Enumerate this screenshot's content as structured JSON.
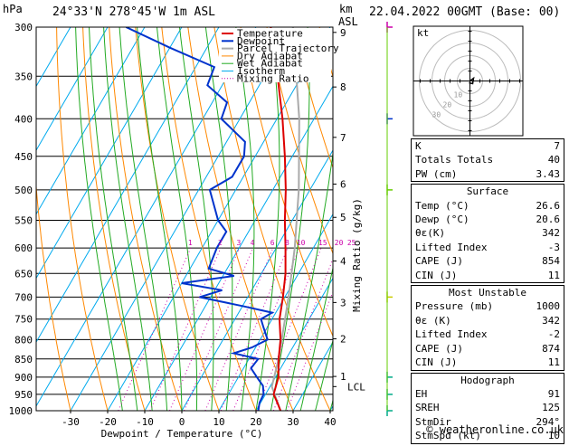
{
  "header": {
    "pressure_unit": "hPa",
    "location": "24°33'N  278°45'W  1m ASL",
    "km_label": "km",
    "asl_label": "ASL",
    "datetime": "22.04.2022 00GMT (Base: 00)"
  },
  "chart_data": {
    "type": "skew-t",
    "xlabel": "Dewpoint / Temperature (°C)",
    "ylabel_right": "Mixing Ratio (g/kg)",
    "pressure_ticks": [
      300,
      350,
      400,
      450,
      500,
      550,
      600,
      650,
      700,
      750,
      800,
      850,
      900,
      950,
      1000
    ],
    "temperature_ticks": [
      -30,
      -20,
      -10,
      0,
      10,
      20,
      30,
      40
    ],
    "km_ticks": [
      {
        "label": "9",
        "p": 305
      },
      {
        "label": "8",
        "p": 362
      },
      {
        "label": "7",
        "p": 424
      },
      {
        "label": "6",
        "p": 491
      },
      {
        "label": "5",
        "p": 545
      },
      {
        "label": "4",
        "p": 625
      },
      {
        "label": "3",
        "p": 712
      },
      {
        "label": "2",
        "p": 798
      },
      {
        "label": "1",
        "p": 898
      },
      {
        "label": "LCL",
        "p": 927
      }
    ],
    "mixing_ratio_labels": [
      "1",
      "2",
      "3",
      "4",
      "6",
      "8",
      "10",
      "15",
      "20",
      "25"
    ],
    "mixing_ratio_values": [
      1,
      2,
      3,
      4,
      6,
      8,
      10,
      15,
      20,
      25
    ],
    "legend": [
      "Temperature",
      "Dewpoint",
      "Parcel Trajectory",
      "Dry Adiabat",
      "Wet Adiabat",
      "Isotherm",
      "Mixing Ratio"
    ],
    "colors": {
      "temperature": "#dd0000",
      "dewpoint": "#0033cc",
      "parcel": "#aaaaaa",
      "dry_adiabat": "#ff8800",
      "wet_adiabat": "#22aa22",
      "isotherm": "#00aaee",
      "mixing_ratio": "#cc00aa"
    },
    "temperature_profile": [
      {
        "p": 1000,
        "t": 26.6
      },
      {
        "p": 975,
        "t": 24.5
      },
      {
        "p": 950,
        "t": 22.2
      },
      {
        "p": 925,
        "t": 21.5
      },
      {
        "p": 900,
        "t": 20.8
      },
      {
        "p": 850,
        "t": 18.0
      },
      {
        "p": 800,
        "t": 15.5
      },
      {
        "p": 750,
        "t": 12.0
      },
      {
        "p": 700,
        "t": 9.5
      },
      {
        "p": 650,
        "t": 6.5
      },
      {
        "p": 600,
        "t": 2.5
      },
      {
        "p": 550,
        "t": -2.0
      },
      {
        "p": 500,
        "t": -6.5
      },
      {
        "p": 450,
        "t": -12.0
      },
      {
        "p": 400,
        "t": -18.5
      },
      {
        "p": 350,
        "t": -26.5
      },
      {
        "p": 300,
        "t": -36.0
      }
    ],
    "dewpoint_profile": [
      {
        "p": 1000,
        "t": 20.6
      },
      {
        "p": 975,
        "t": 19.7
      },
      {
        "p": 950,
        "t": 19.5
      },
      {
        "p": 925,
        "t": 18.0
      },
      {
        "p": 900,
        "t": 15.0
      },
      {
        "p": 875,
        "t": 12.0
      },
      {
        "p": 850,
        "t": 12.5
      },
      {
        "p": 835,
        "t": 5.0
      },
      {
        "p": 820,
        "t": 9.0
      },
      {
        "p": 800,
        "t": 12.0
      },
      {
        "p": 770,
        "t": 9.0
      },
      {
        "p": 750,
        "t": 7.0
      },
      {
        "p": 735,
        "t": 9.0
      },
      {
        "p": 720,
        "t": 0.0
      },
      {
        "p": 700,
        "t": -13.0
      },
      {
        "p": 685,
        "t": -8.0
      },
      {
        "p": 670,
        "t": -20.0
      },
      {
        "p": 655,
        "t": -7.0
      },
      {
        "p": 640,
        "t": -15.0
      },
      {
        "p": 600,
        "t": -16.0
      },
      {
        "p": 570,
        "t": -16.0
      },
      {
        "p": 550,
        "t": -20.0
      },
      {
        "p": 500,
        "t": -27.0
      },
      {
        "p": 480,
        "t": -23.0
      },
      {
        "p": 450,
        "t": -23.0
      },
      {
        "p": 430,
        "t": -25.0
      },
      {
        "p": 400,
        "t": -35.0
      },
      {
        "p": 380,
        "t": -36.0
      },
      {
        "p": 360,
        "t": -44.0
      },
      {
        "p": 340,
        "t": -45.0
      },
      {
        "p": 320,
        "t": -60.0
      },
      {
        "p": 300,
        "t": -75.0
      }
    ],
    "parcel_profile": [
      {
        "p": 1000,
        "t": 26.6
      },
      {
        "p": 927,
        "t": 20.5
      },
      {
        "p": 850,
        "t": 18.0
      },
      {
        "p": 700,
        "t": 11.0
      },
      {
        "p": 600,
        "t": 5.0
      },
      {
        "p": 500,
        "t": -3.0
      },
      {
        "p": 400,
        "t": -14.0
      },
      {
        "p": 300,
        "t": -30.0
      }
    ],
    "hodograph": {
      "label": "kt",
      "ring_labels": [
        "10",
        "20",
        "30"
      ]
    },
    "wind_levels_p": [
      300,
      400,
      500,
      700,
      900,
      950,
      1000
    ]
  },
  "indices": {
    "top": [
      {
        "label": "K",
        "value": "7"
      },
      {
        "label": "Totals Totals",
        "value": "40"
      },
      {
        "label": "PW (cm)",
        "value": "3.43"
      }
    ],
    "surface": {
      "title": "Surface",
      "rows": [
        {
          "label": "Temp (°C)",
          "value": "26.6"
        },
        {
          "label": "Dewp (°C)",
          "value": "20.6"
        },
        {
          "label": "θε(K)",
          "value": "342"
        },
        {
          "label": "Lifted Index",
          "value": "-3"
        },
        {
          "label": "CAPE (J)",
          "value": "854"
        },
        {
          "label": "CIN (J)",
          "value": "11"
        }
      ]
    },
    "unstable": {
      "title": "Most Unstable",
      "rows": [
        {
          "label": "Pressure (mb)",
          "value": "1000"
        },
        {
          "label": "θε (K)",
          "value": "342"
        },
        {
          "label": "Lifted Index",
          "value": "-2"
        },
        {
          "label": "CAPE (J)",
          "value": "874"
        },
        {
          "label": "CIN (J)",
          "value": "11"
        }
      ]
    },
    "hodograph": {
      "title": "Hodograph",
      "rows": [
        {
          "label": "EH",
          "value": "91"
        },
        {
          "label": "SREH",
          "value": "125"
        },
        {
          "label": "StmDir",
          "value": "294°"
        },
        {
          "label": "StmSpd (kt)",
          "value": "10"
        }
      ]
    }
  },
  "credit": "© weatheronline.co.uk"
}
